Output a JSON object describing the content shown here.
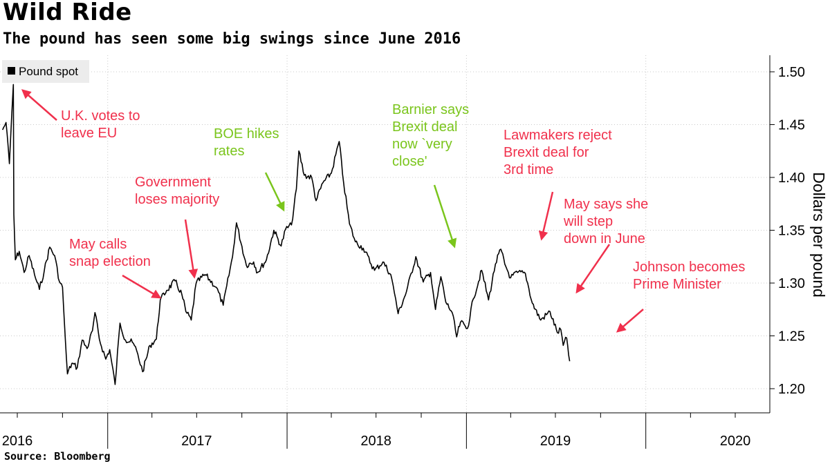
{
  "title": "Wild Ride",
  "subtitle": "The pound has seen some big swings since June 2016",
  "source": "Source: Bloomberg",
  "colors": {
    "line": "#000000",
    "grid": "#c8c8c8",
    "red": "#f0304c",
    "green": "#7ac51c",
    "legend_bg": "#ececec"
  },
  "chart_data": {
    "type": "line",
    "title": "Wild Ride",
    "subtitle": "The pound has seen some big swings since June 2016",
    "ylabel": "Dollars per pound",
    "xlabel": "",
    "ylim": [
      1.175,
      1.52
    ],
    "xlim": [
      "2016-01-01",
      "2020-12-31"
    ],
    "grid": true,
    "legend_position": "top-left",
    "y_ticks": [
      1.2,
      1.25,
      1.3,
      1.35,
      1.4,
      1.45,
      1.5
    ],
    "y_tick_labels": [
      "1.20",
      "1.25",
      "1.30",
      "1.35",
      "1.40",
      "1.45",
      "1.50"
    ],
    "x_tick_labels": [
      "2016",
      "2017",
      "2018",
      "2019",
      "2020"
    ],
    "series": [
      {
        "name": "Pound spot",
        "color": "#000000",
        "points": [
          [
            "2016-06-01",
            1.445
          ],
          [
            "2016-06-08",
            1.452
          ],
          [
            "2016-06-15",
            1.413
          ],
          [
            "2016-06-20",
            1.462
          ],
          [
            "2016-06-23",
            1.488
          ],
          [
            "2016-06-24",
            1.365
          ],
          [
            "2016-06-27",
            1.322
          ],
          [
            "2016-07-05",
            1.33
          ],
          [
            "2016-07-15",
            1.31
          ],
          [
            "2016-07-25",
            1.326
          ],
          [
            "2016-08-05",
            1.308
          ],
          [
            "2016-08-15",
            1.294
          ],
          [
            "2016-08-25",
            1.312
          ],
          [
            "2016-09-05",
            1.334
          ],
          [
            "2016-09-15",
            1.326
          ],
          [
            "2016-09-25",
            1.301
          ],
          [
            "2016-10-01",
            1.296
          ],
          [
            "2016-10-04",
            1.27
          ],
          [
            "2016-10-07",
            1.245
          ],
          [
            "2016-10-11",
            1.214
          ],
          [
            "2016-10-20",
            1.224
          ],
          [
            "2016-10-31",
            1.22
          ],
          [
            "2016-11-10",
            1.246
          ],
          [
            "2016-11-20",
            1.238
          ],
          [
            "2016-12-01",
            1.255
          ],
          [
            "2016-12-06",
            1.272
          ],
          [
            "2016-12-15",
            1.247
          ],
          [
            "2016-12-28",
            1.228
          ],
          [
            "2017-01-05",
            1.237
          ],
          [
            "2017-01-16",
            1.204
          ],
          [
            "2017-01-26",
            1.262
          ],
          [
            "2017-02-06",
            1.246
          ],
          [
            "2017-02-20",
            1.244
          ],
          [
            "2017-03-01",
            1.236
          ],
          [
            "2017-03-13",
            1.216
          ],
          [
            "2017-03-28",
            1.241
          ],
          [
            "2017-04-10",
            1.247
          ],
          [
            "2017-04-18",
            1.284
          ],
          [
            "2017-05-01",
            1.293
          ],
          [
            "2017-05-18",
            1.302
          ],
          [
            "2017-06-01",
            1.289
          ],
          [
            "2017-06-09",
            1.273
          ],
          [
            "2017-06-20",
            1.265
          ],
          [
            "2017-06-30",
            1.3
          ],
          [
            "2017-07-18",
            1.308
          ],
          [
            "2017-08-10",
            1.296
          ],
          [
            "2017-08-24",
            1.279
          ],
          [
            "2017-09-12",
            1.325
          ],
          [
            "2017-09-20",
            1.357
          ],
          [
            "2017-10-10",
            1.317
          ],
          [
            "2017-10-25",
            1.32
          ],
          [
            "2017-11-02",
            1.31
          ],
          [
            "2017-11-20",
            1.322
          ],
          [
            "2017-12-05",
            1.35
          ],
          [
            "2017-12-20",
            1.335
          ],
          [
            "2017-12-29",
            1.351
          ],
          [
            "2018-01-10",
            1.355
          ],
          [
            "2018-01-20",
            1.389
          ],
          [
            "2018-01-25",
            1.425
          ],
          [
            "2018-02-05",
            1.402
          ],
          [
            "2018-02-20",
            1.4
          ],
          [
            "2018-03-01",
            1.378
          ],
          [
            "2018-03-15",
            1.395
          ],
          [
            "2018-04-01",
            1.404
          ],
          [
            "2018-04-17",
            1.434
          ],
          [
            "2018-04-26",
            1.395
          ],
          [
            "2018-05-08",
            1.356
          ],
          [
            "2018-05-20",
            1.339
          ],
          [
            "2018-06-05",
            1.333
          ],
          [
            "2018-06-28",
            1.312
          ],
          [
            "2018-07-15",
            1.32
          ],
          [
            "2018-07-31",
            1.308
          ],
          [
            "2018-08-10",
            1.285
          ],
          [
            "2018-08-15",
            1.271
          ],
          [
            "2018-09-01",
            1.292
          ],
          [
            "2018-09-20",
            1.325
          ],
          [
            "2018-10-05",
            1.301
          ],
          [
            "2018-10-20",
            1.31
          ],
          [
            "2018-10-30",
            1.275
          ],
          [
            "2018-11-10",
            1.306
          ],
          [
            "2018-11-20",
            1.282
          ],
          [
            "2018-12-03",
            1.272
          ],
          [
            "2018-12-12",
            1.249
          ],
          [
            "2018-12-20",
            1.263
          ],
          [
            "2019-01-03",
            1.257
          ],
          [
            "2019-01-15",
            1.285
          ],
          [
            "2019-02-01",
            1.312
          ],
          [
            "2019-02-15",
            1.284
          ],
          [
            "2019-03-01",
            1.318
          ],
          [
            "2019-03-12",
            1.332
          ],
          [
            "2019-03-20",
            1.318
          ],
          [
            "2019-04-01",
            1.305
          ],
          [
            "2019-04-15",
            1.31
          ],
          [
            "2019-05-01",
            1.309
          ],
          [
            "2019-05-15",
            1.281
          ],
          [
            "2019-06-01",
            1.265
          ],
          [
            "2019-06-20",
            1.273
          ],
          [
            "2019-07-05",
            1.253
          ],
          [
            "2019-07-12",
            1.256
          ],
          [
            "2019-07-17",
            1.241
          ],
          [
            "2019-07-24",
            1.248
          ],
          [
            "2019-07-30",
            1.226
          ]
        ]
      }
    ],
    "annotations": [
      {
        "text": [
          "U.K. votes to",
          "leave EU"
        ],
        "color": "red"
      },
      {
        "text": [
          "May calls",
          "snap election"
        ],
        "color": "red"
      },
      {
        "text": [
          "Government",
          "loses majority"
        ],
        "color": "red"
      },
      {
        "text": [
          "BOE hikes",
          "rates"
        ],
        "color": "green"
      },
      {
        "text": [
          "Barnier says",
          "Brexit deal",
          "now `very",
          "close'"
        ],
        "color": "green"
      },
      {
        "text": [
          "Lawmakers reject",
          "Brexit deal for",
          "3rd time"
        ],
        "color": "red"
      },
      {
        "text": [
          "May says she",
          "will step",
          "down in June"
        ],
        "color": "red"
      },
      {
        "text": [
          "Johnson becomes",
          "Prime Minister"
        ],
        "color": "red"
      }
    ]
  }
}
